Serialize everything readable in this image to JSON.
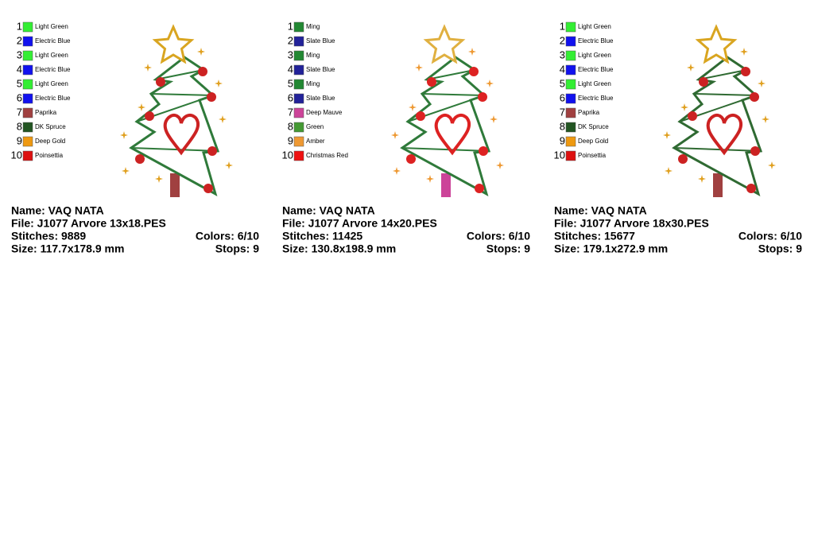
{
  "panels": [
    {
      "colors": [
        {
          "number": "1",
          "name": "Light Green",
          "color": "#33ee33"
        },
        {
          "number": "2",
          "name": "Electric Blue",
          "color": "#1111ee"
        },
        {
          "number": "3",
          "name": "Light Green",
          "color": "#33ee33"
        },
        {
          "number": "4",
          "name": "Electric Blue",
          "color": "#1111ee"
        },
        {
          "number": "5",
          "name": "Light Green",
          "color": "#33ee33"
        },
        {
          "number": "6",
          "name": "Electric Blue",
          "color": "#1111ee"
        },
        {
          "number": "7",
          "name": "Paprika",
          "color": "#a04040"
        },
        {
          "number": "8",
          "name": "DK Spruce",
          "color": "#225522"
        },
        {
          "number": "9",
          "name": "Deep Gold",
          "color": "#ee9911"
        },
        {
          "number": "10",
          "name": "Poinsettia",
          "color": "#dd1111"
        }
      ],
      "name": "Name: VAQ NATA",
      "file": "File: J1077 Arvore 13x18.PES",
      "stitches": "Stitches: 9889",
      "colors_used": "Colors: 6/10",
      "size": "Size: 117.7x178.9 mm",
      "stops": "Stops: 9"
    },
    {
      "colors": [
        {
          "number": "1",
          "name": "Ming",
          "color": "#228833"
        },
        {
          "number": "2",
          "name": "Slate Blue",
          "color": "#222299"
        },
        {
          "number": "3",
          "name": "Ming",
          "color": "#228833"
        },
        {
          "number": "4",
          "name": "Slate Blue",
          "color": "#222299"
        },
        {
          "number": "5",
          "name": "Ming",
          "color": "#228833"
        },
        {
          "number": "6",
          "name": "Slate Blue",
          "color": "#222299"
        },
        {
          "number": "7",
          "name": "Deep Mauve",
          "color": "#cc4499"
        },
        {
          "number": "8",
          "name": "Green",
          "color": "#449933"
        },
        {
          "number": "9",
          "name": "Amber",
          "color": "#ee9933"
        },
        {
          "number": "10",
          "name": "Christmas Red",
          "color": "#ee1111"
        }
      ],
      "name": "Name: VAQ NATA",
      "file": "File: J1077 Arvore 14x20.PES",
      "stitches": "Stitches: 11425",
      "colors_used": "Colors: 6/10",
      "size": "Size: 130.8x198.9 mm",
      "stops": "Stops: 9"
    },
    {
      "colors": [
        {
          "number": "1",
          "name": "Light Green",
          "color": "#33ee33"
        },
        {
          "number": "2",
          "name": "Electric Blue",
          "color": "#1111ee"
        },
        {
          "number": "3",
          "name": "Light Green",
          "color": "#33ee33"
        },
        {
          "number": "4",
          "name": "Electric Blue",
          "color": "#1111ee"
        },
        {
          "number": "5",
          "name": "Light Green",
          "color": "#33ee33"
        },
        {
          "number": "6",
          "name": "Electric Blue",
          "color": "#1111ee"
        },
        {
          "number": "7",
          "name": "Paprika",
          "color": "#a04040"
        },
        {
          "number": "8",
          "name": "DK Spruce",
          "color": "#225522"
        },
        {
          "number": "9",
          "name": "Deep Gold",
          "color": "#ee9911"
        },
        {
          "number": "10",
          "name": "Poinsettia",
          "color": "#dd1111"
        }
      ],
      "name": "Name: VAQ NATA",
      "file": "File: J1077 Arvore 18x30.PES",
      "stitches": "Stitches: 15677",
      "colors_used": "Colors: 6/10",
      "size": "Size: 179.1x272.9 mm",
      "stops": "Stops: 9"
    }
  ]
}
